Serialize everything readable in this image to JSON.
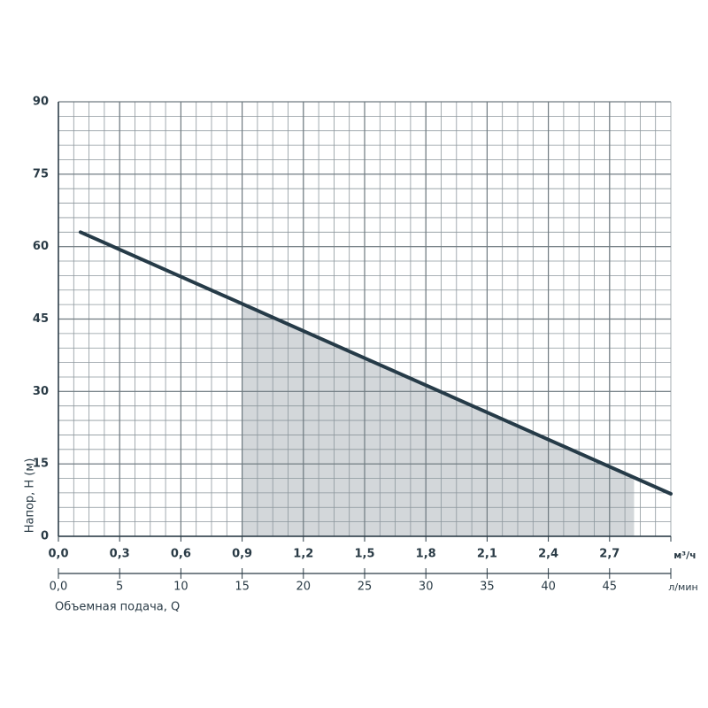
{
  "chart_data": {
    "type": "line",
    "ylabel": "Напор, Н (м)",
    "xlabel": "Объемная подача, Q",
    "x_unit": "л/мин",
    "x2_unit": "м³/ч",
    "xlim": [
      0,
      50
    ],
    "xticks": [
      {
        "value": 0,
        "label": "0,0"
      },
      5,
      10,
      15,
      20,
      25,
      30,
      35,
      40,
      45
    ],
    "x2lim": [
      0,
      3
    ],
    "x2ticks": [
      {
        "value": 0,
        "label": "0,0"
      },
      {
        "value": 0.3,
        "label": "0,3"
      },
      {
        "value": 0.6,
        "label": "0,6"
      },
      {
        "value": 0.9,
        "label": "0,9"
      },
      {
        "value": 1.2,
        "label": "1,2"
      },
      {
        "value": 1.5,
        "label": "1,5"
      },
      {
        "value": 1.8,
        "label": "1,8"
      },
      {
        "value": 2.1,
        "label": "2,1"
      },
      {
        "value": 2.4,
        "label": "2,4"
      },
      {
        "value": 2.7,
        "label": "2,7"
      }
    ],
    "ylim": [
      0,
      90
    ],
    "yticks": [
      0,
      15,
      30,
      45,
      60,
      75,
      90
    ],
    "grid": true,
    "working_range": [
      15,
      47
    ],
    "range_color": "#d3d7da",
    "series": [
      {
        "color": "#263b48",
        "x": [
          1.8,
          50
        ],
        "values": [
          63,
          8.8
        ]
      }
    ]
  }
}
